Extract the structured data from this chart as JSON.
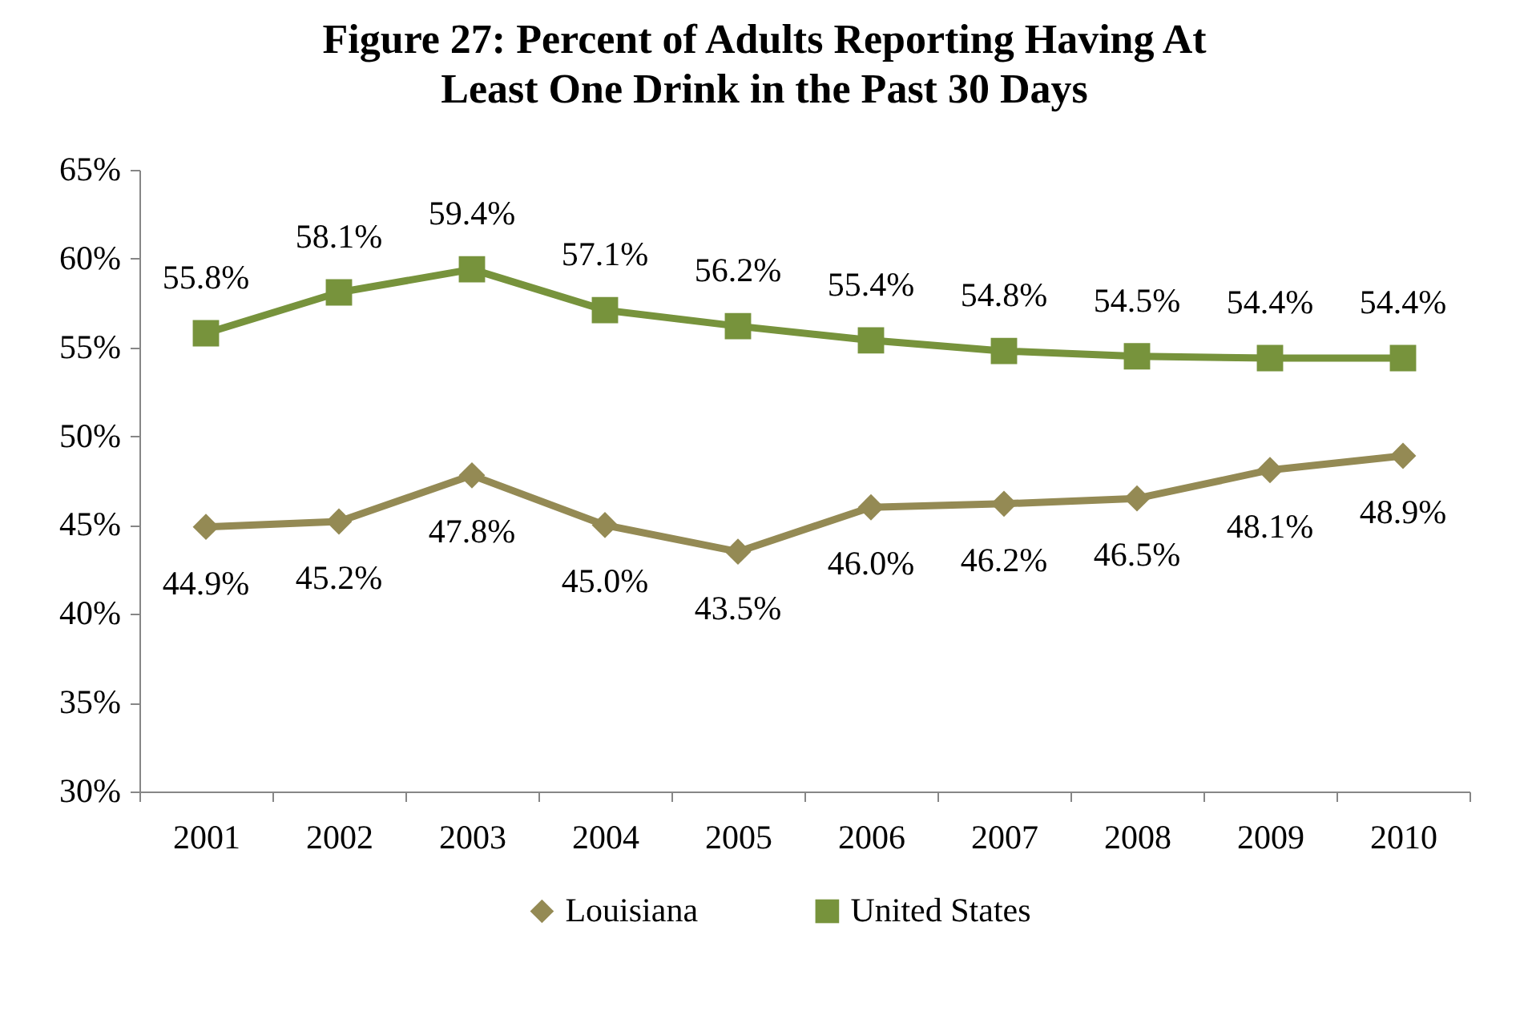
{
  "chart_data": {
    "type": "line",
    "title": "Figure 27: Percent of Adults Reporting Having At\nLeast One Drink in the Past 30 Days",
    "categories": [
      "2001",
      "2002",
      "2003",
      "2004",
      "2005",
      "2006",
      "2007",
      "2008",
      "2009",
      "2010"
    ],
    "series": [
      {
        "name": "Louisiana",
        "color": "#948a54",
        "marker": "diamond",
        "values": [
          44.9,
          45.2,
          47.8,
          45.0,
          43.5,
          46.0,
          46.2,
          46.5,
          48.1,
          48.9
        ],
        "value_labels": [
          "44.9%",
          "45.2%",
          "47.8%",
          "45.0%",
          "43.5%",
          "46.0%",
          "46.2%",
          "46.5%",
          "48.1%",
          "48.9%"
        ]
      },
      {
        "name": "United States",
        "color": "#77933c",
        "marker": "square",
        "values": [
          55.8,
          58.1,
          59.4,
          57.1,
          56.2,
          55.4,
          54.8,
          54.5,
          54.4,
          54.4
        ],
        "value_labels": [
          "55.8%",
          "58.1%",
          "59.4%",
          "57.1%",
          "56.2%",
          "55.4%",
          "54.8%",
          "54.5%",
          "54.4%",
          "54.4%"
        ]
      }
    ],
    "ylim": [
      30,
      65
    ],
    "yticks": [
      {
        "value": 30,
        "label": "30%"
      },
      {
        "value": 35,
        "label": "35%"
      },
      {
        "value": 40,
        "label": "40%"
      },
      {
        "value": 45,
        "label": "45%"
      },
      {
        "value": 50,
        "label": "50%"
      },
      {
        "value": 55,
        "label": "55%"
      },
      {
        "value": 60,
        "label": "60%"
      },
      {
        "value": 65,
        "label": "65%"
      }
    ],
    "grid": false,
    "legend": "bottom",
    "line_style": "solid"
  }
}
